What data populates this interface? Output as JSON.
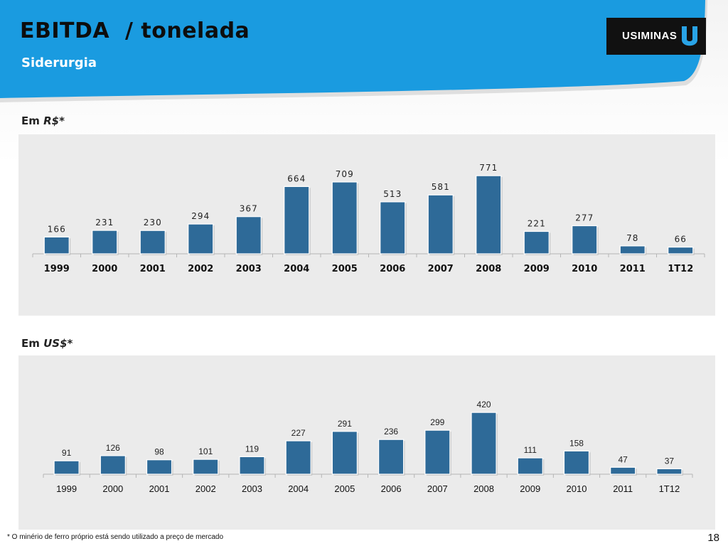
{
  "header": {
    "title": "EBITDA  / tonelada",
    "subtitle": "Siderurgia",
    "logo_text": "USIMINAS"
  },
  "colors": {
    "header_blue": "#1a9be0",
    "bar": "#2e6a98",
    "panel": "#ebebeb"
  },
  "sections": [
    {
      "prefix": "Em ",
      "unit": "R$*"
    },
    {
      "prefix": "Em ",
      "unit": "US$*"
    }
  ],
  "chart_data": [
    {
      "type": "bar",
      "categories": [
        "1999",
        "2000",
        "2001",
        "2002",
        "2003",
        "2004",
        "2005",
        "2006",
        "2007",
        "2008",
        "2009",
        "2010",
        "2011",
        "1T12"
      ],
      "values": [
        166,
        231,
        230,
        294,
        367,
        664,
        709,
        513,
        581,
        771,
        221,
        277,
        78,
        66
      ],
      "title": "",
      "xlabel": "",
      "ylabel": "",
      "ylim": [
        0,
        800
      ],
      "grid": false
    },
    {
      "type": "bar",
      "categories": [
        "1999",
        "2000",
        "2001",
        "2002",
        "2003",
        "2004",
        "2005",
        "2006",
        "2007",
        "2008",
        "2009",
        "2010",
        "2011",
        "1T12"
      ],
      "values": [
        91,
        126,
        98,
        101,
        119,
        227,
        291,
        236,
        299,
        420,
        111,
        158,
        47,
        37
      ],
      "title": "",
      "xlabel": "",
      "ylabel": "",
      "ylim": [
        0,
        440
      ],
      "grid": false
    }
  ],
  "footnote": "* O minério de ferro próprio está sendo utilizado a preço de mercado",
  "page_number": "18"
}
